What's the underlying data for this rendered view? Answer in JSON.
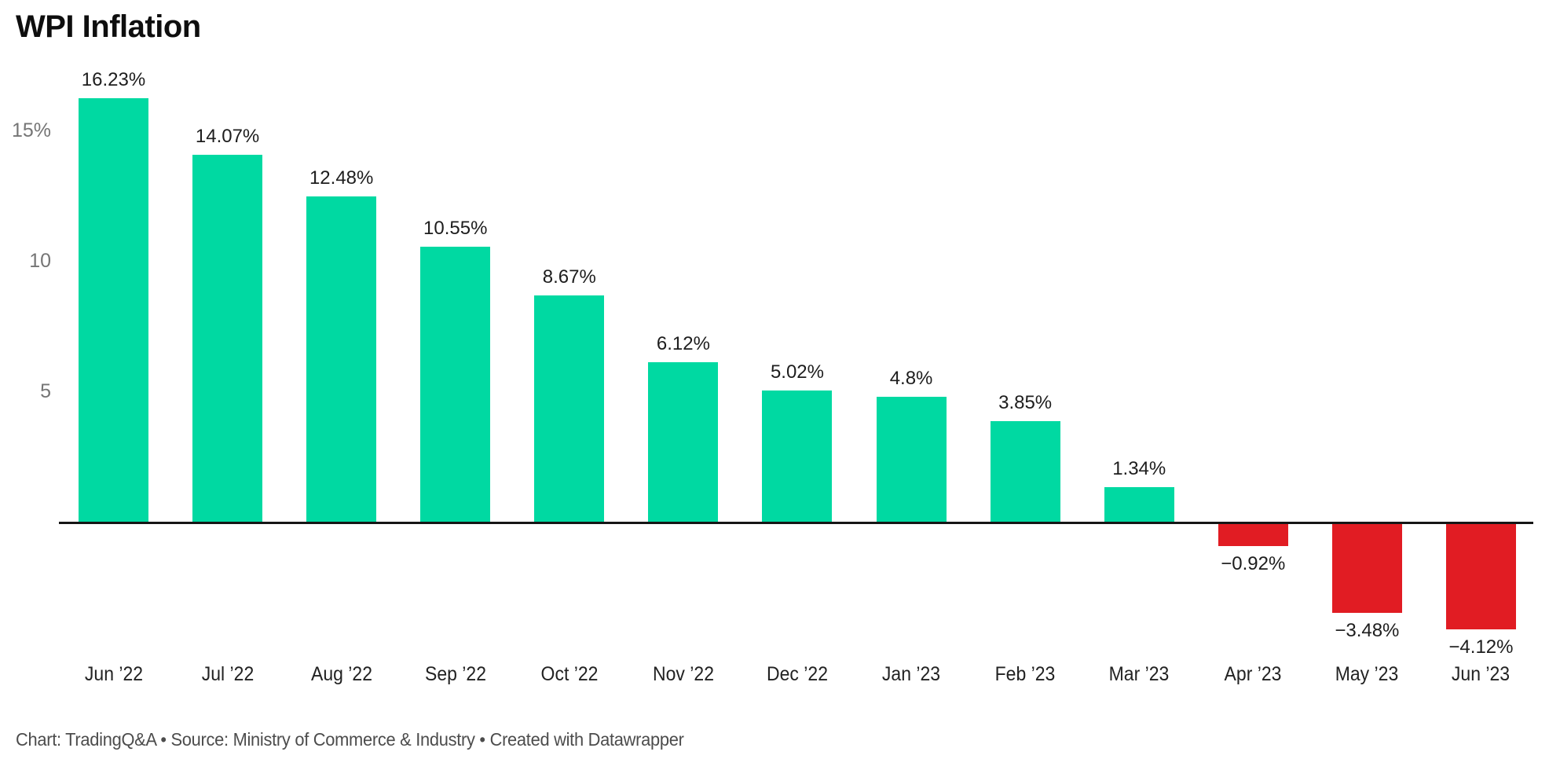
{
  "title": "WPI Inflation",
  "footer": "Chart: TradingQ&A • Source: Ministry of Commerce & Industry • Created with Datawrapper",
  "colors": {
    "positive_bar": "#00d9a2",
    "negative_bar": "#e11c23",
    "axis_line": "#161616",
    "value_label": "#1d1d1d",
    "tick_label": "#757575",
    "x_label": "#222222",
    "footer_text": "#4c4c4c",
    "background": "#ffffff"
  },
  "chart_data": {
    "type": "bar",
    "title": "WPI Inflation",
    "xlabel": "",
    "ylabel": "",
    "grid": false,
    "legend": false,
    "ylim": [
      -5.5,
      17.5
    ],
    "categories": [
      "Jun ’22",
      "Jul ’22",
      "Aug ’22",
      "Sep ’22",
      "Oct ’22",
      "Nov ’22",
      "Dec ’22",
      "Jan ’23",
      "Feb ’23",
      "Mar ’23",
      "Apr ’23",
      "May ’23",
      "Jun ’23"
    ],
    "values": [
      16.23,
      14.07,
      12.48,
      10.55,
      8.67,
      6.12,
      5.02,
      4.8,
      3.85,
      1.34,
      -0.92,
      -3.48,
      -4.12
    ],
    "value_labels": [
      "16.23%",
      "14.07%",
      "12.48%",
      "10.55%",
      "8.67%",
      "6.12%",
      "5.02%",
      "4.8%",
      "3.85%",
      "1.34%",
      "−0.92%",
      "−3.48%",
      "−4.12%"
    ],
    "y_ticks": [
      {
        "value": 15,
        "label": "15%"
      },
      {
        "value": 10,
        "label": "10"
      },
      {
        "value": 5,
        "label": "5"
      }
    ]
  }
}
